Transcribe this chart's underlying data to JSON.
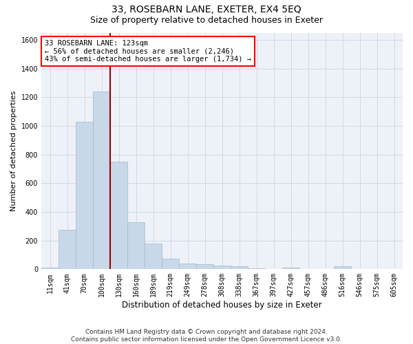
{
  "title_line1": "33, ROSEBARN LANE, EXETER, EX4 5EQ",
  "title_line2": "Size of property relative to detached houses in Exeter",
  "xlabel": "Distribution of detached houses by size in Exeter",
  "ylabel": "Number of detached properties",
  "bar_labels": [
    "11sqm",
    "41sqm",
    "70sqm",
    "100sqm",
    "130sqm",
    "160sqm",
    "189sqm",
    "219sqm",
    "249sqm",
    "278sqm",
    "308sqm",
    "338sqm",
    "367sqm",
    "397sqm",
    "427sqm",
    "457sqm",
    "486sqm",
    "516sqm",
    "546sqm",
    "575sqm",
    "605sqm"
  ],
  "bar_values": [
    10,
    275,
    1030,
    1240,
    750,
    330,
    180,
    75,
    40,
    35,
    25,
    20,
    8,
    0,
    10,
    0,
    0,
    20,
    0,
    0,
    0
  ],
  "bar_color": "#c8d8e8",
  "bar_edge_color": "#a0b8d0",
  "vline_color": "#9b0000",
  "annotation_line1": "33 ROSEBARN LANE: 123sqm",
  "annotation_line2": "← 56% of detached houses are smaller (2,246)",
  "annotation_line3": "43% of semi-detached houses are larger (1,734) →",
  "annotation_box_color": "white",
  "annotation_box_edge": "red",
  "ylim": [
    0,
    1650
  ],
  "yticks": [
    0,
    200,
    400,
    600,
    800,
    1000,
    1200,
    1400,
    1600
  ],
  "grid_color": "#d0d8e8",
  "bg_color": "#eef2f8",
  "footer_text": "Contains HM Land Registry data © Crown copyright and database right 2024.\nContains public sector information licensed under the Open Government Licence v3.0.",
  "title_fontsize": 10,
  "subtitle_fontsize": 9,
  "xlabel_fontsize": 8.5,
  "ylabel_fontsize": 8,
  "tick_fontsize": 7,
  "annotation_fontsize": 7.5,
  "footer_fontsize": 6.5
}
